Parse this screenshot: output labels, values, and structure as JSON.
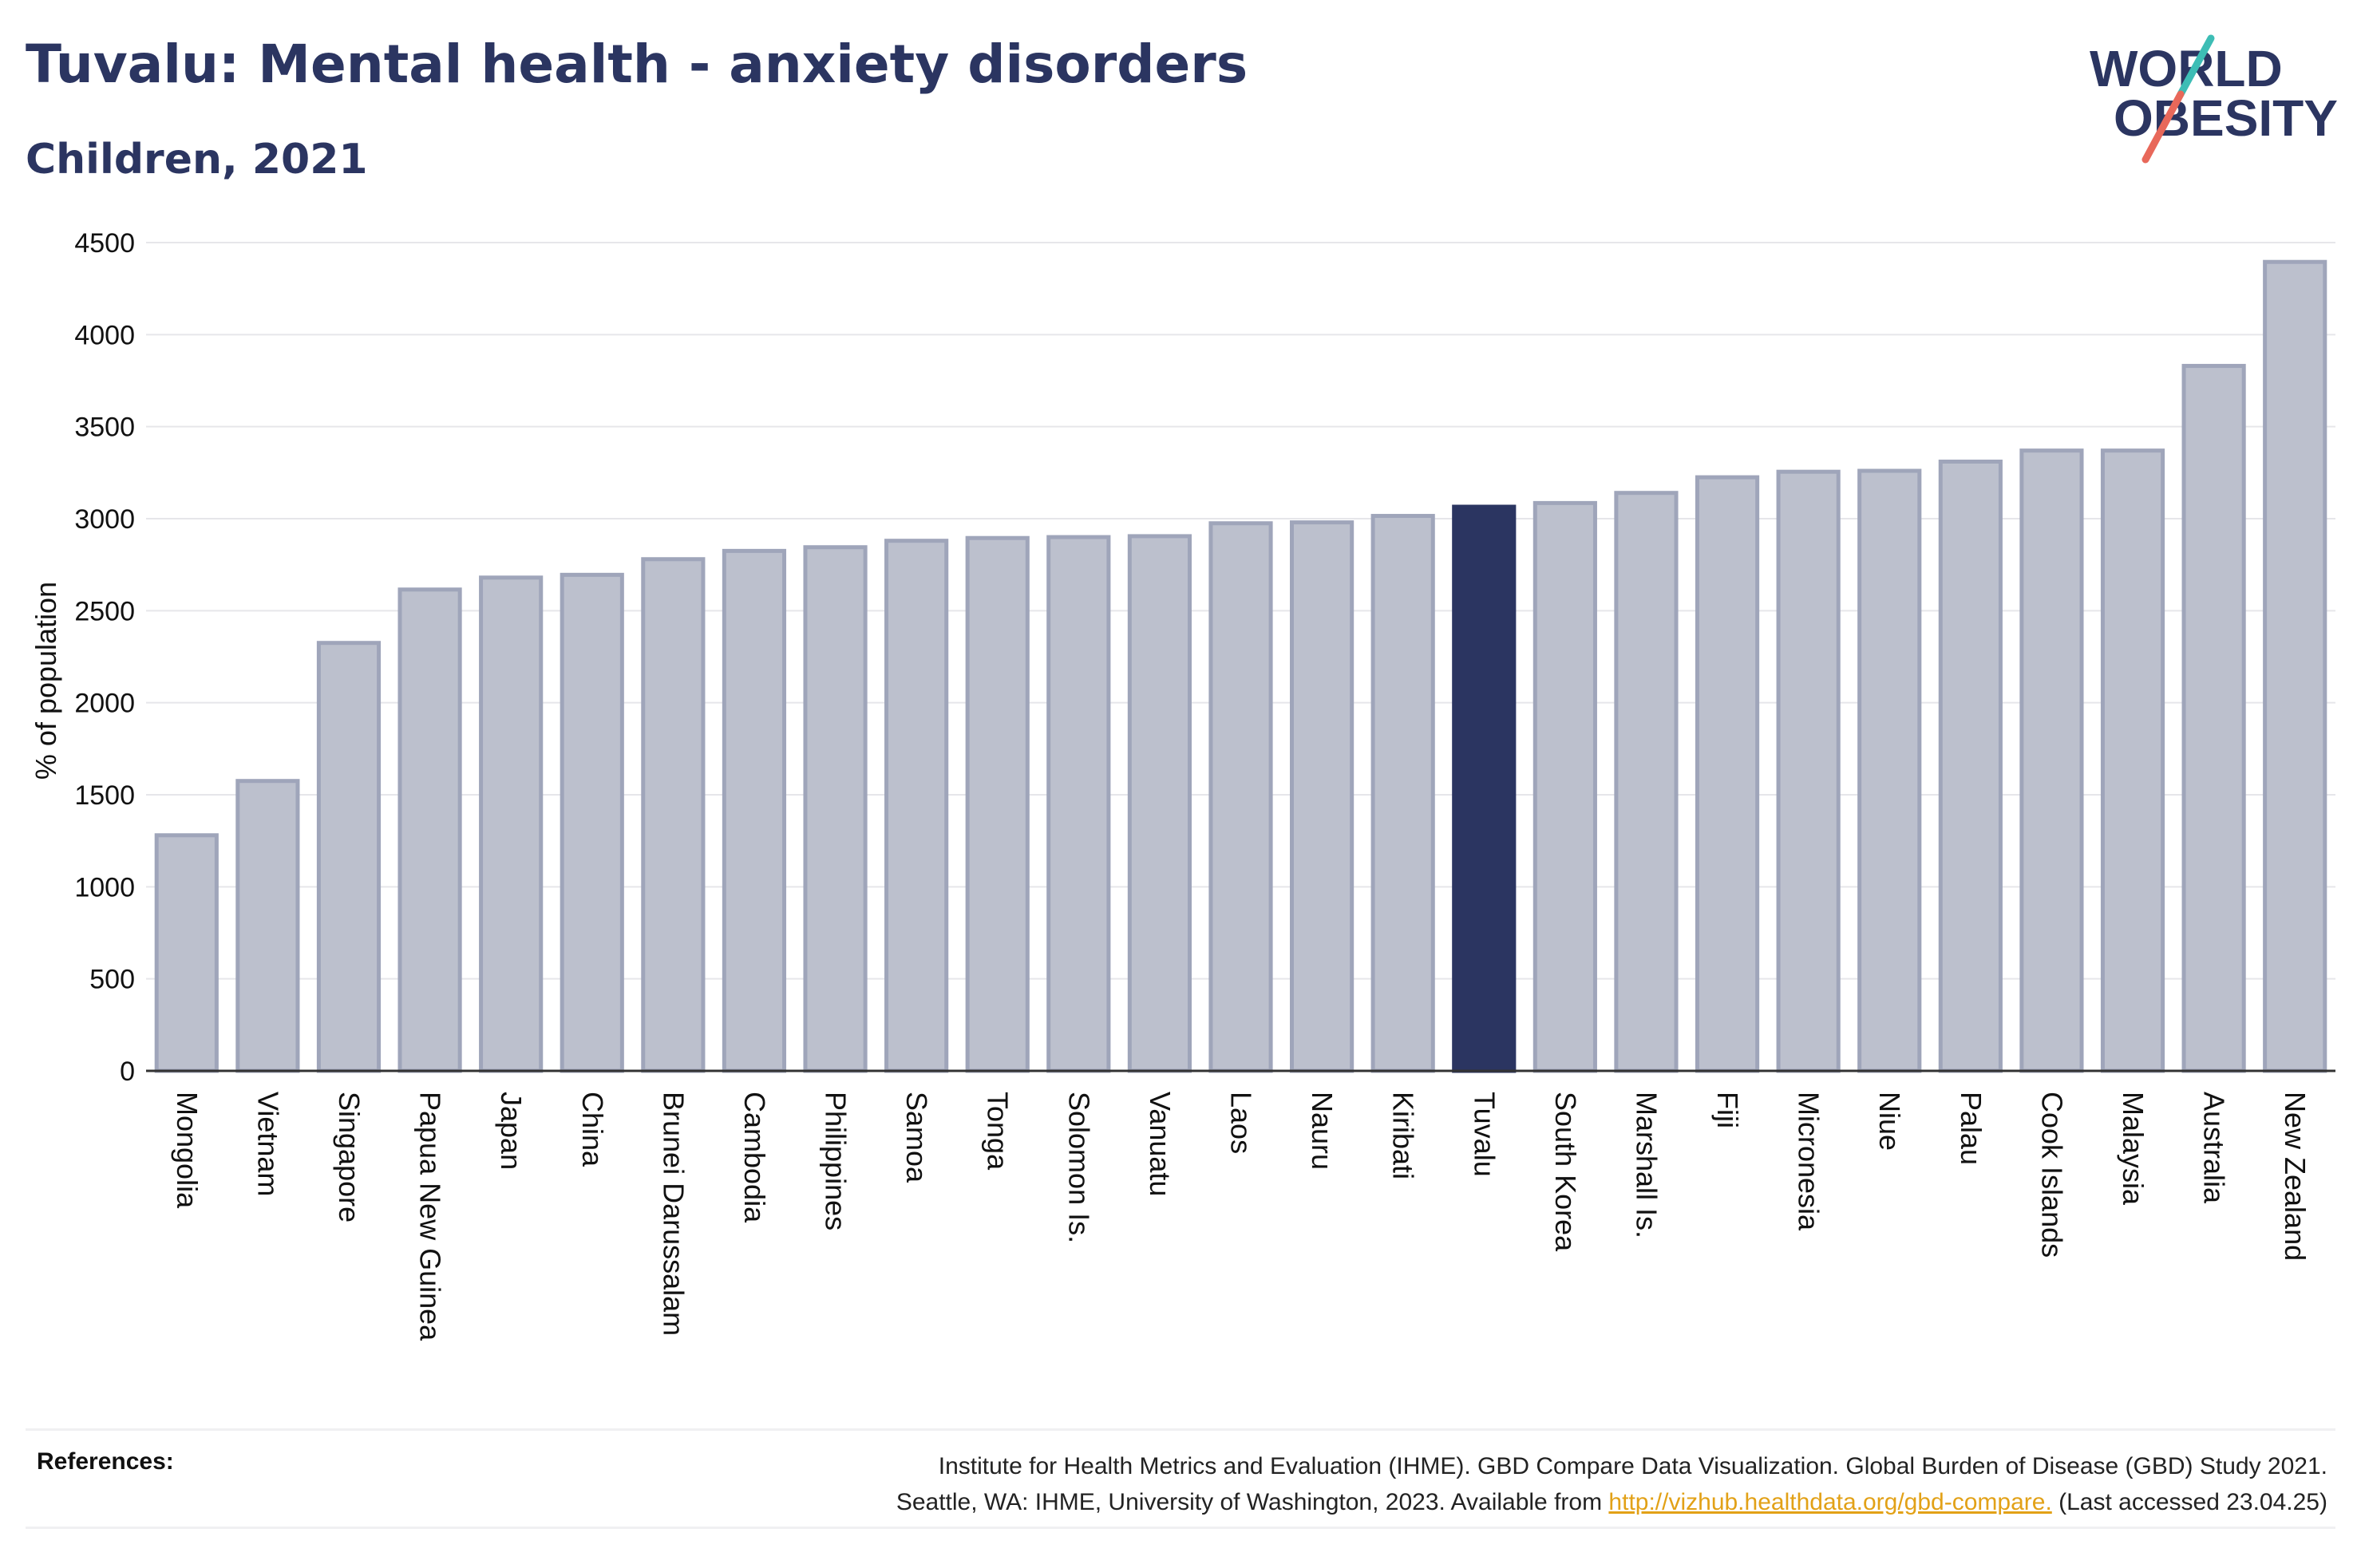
{
  "title": "Tuvalu: Mental health - anxiety disorders",
  "subtitle": "Children, 2021",
  "logo": {
    "line1": "WORLD",
    "line2": "OBESITY"
  },
  "colors": {
    "title": "#2b3561",
    "bar": "#bcc0cd",
    "bar_stroke": "#9fa5ba",
    "highlight": "#2b3561",
    "grid": "#e6e6ea",
    "logo_teal": "#3dbdb5",
    "logo_coral": "#e8685a",
    "link": "#e2a117"
  },
  "chart_data": {
    "type": "bar",
    "ylabel": "% of population",
    "ylim": [
      0,
      4500
    ],
    "yticks": [
      0,
      500,
      1000,
      1500,
      2000,
      2500,
      3000,
      3500,
      4000,
      4500
    ],
    "grid": true,
    "highlight": "Tuvalu",
    "categories": [
      "Mongolia",
      "Vietnam",
      "Singapore",
      "Papua New Guinea",
      "Japan",
      "China",
      "Brunei Darussalam",
      "Cambodia",
      "Philippines",
      "Samoa",
      "Tonga",
      "Solomon Is.",
      "Vanuatu",
      "Laos",
      "Nauru",
      "Kiribati",
      "Tuvalu",
      "South Korea",
      "Marshall Is.",
      "Fiji",
      "Micronesia",
      "Niue",
      "Palau",
      "Cook Islands",
      "Malaysia",
      "Australia",
      "New Zealand"
    ],
    "values": [
      1280,
      1575,
      2325,
      2615,
      2680,
      2695,
      2780,
      2825,
      2845,
      2880,
      2895,
      2900,
      2905,
      2975,
      2980,
      3015,
      3065,
      3085,
      3140,
      3225,
      3255,
      3260,
      3310,
      3370,
      3370,
      3830,
      4395
    ]
  },
  "references": {
    "label": "References:",
    "line1": "Institute for Health Metrics and Evaluation (IHME). GBD Compare Data Visualization. Global Burden of Disease (GBD) Study 2021.",
    "line2_prefix": "Seattle, WA: IHME, University of Washington, 2023. Available from ",
    "link": "http://vizhub.healthdata.org/gbd-compare.",
    "line2_suffix": " (Last accessed 23.04.25)"
  }
}
